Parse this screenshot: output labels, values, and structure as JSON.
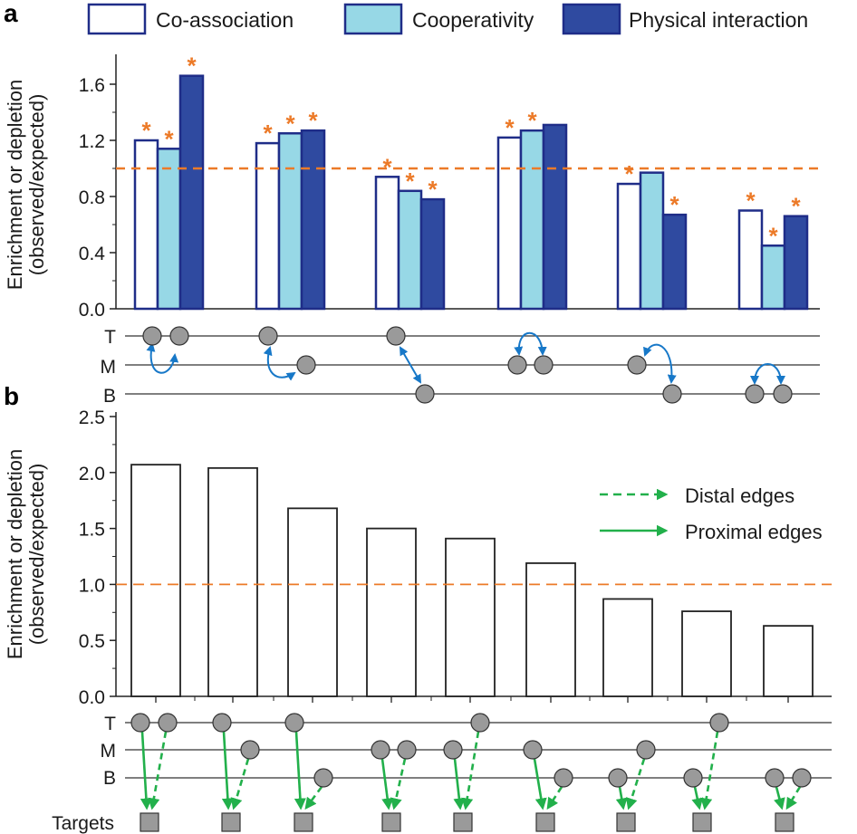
{
  "chart_data": [
    {
      "panel": "a",
      "type": "bar",
      "ylabel_line1": "Enrichment or depletion",
      "ylabel_line2": "(observed/expected)",
      "ylim": [
        0,
        1.7
      ],
      "yticks": [
        "0.0",
        "0.4",
        "0.8",
        "1.2",
        "1.6"
      ],
      "reference_line": 1.0,
      "legend": [
        "Co-association",
        "Cooperativity",
        "Physical interaction"
      ],
      "series": [
        {
          "name": "Co-association",
          "color": "#ffffff",
          "values": [
            1.2,
            1.18,
            0.94,
            1.22,
            0.89,
            0.7
          ],
          "significant": [
            true,
            true,
            true,
            true,
            true,
            true
          ]
        },
        {
          "name": "Cooperativity",
          "color": "#97d8e6",
          "values": [
            1.14,
            1.25,
            0.84,
            1.27,
            0.97,
            0.45
          ],
          "significant": [
            true,
            true,
            true,
            true,
            false,
            true
          ]
        },
        {
          "name": "Physical interaction",
          "color": "#2f4aa0",
          "values": [
            1.66,
            1.27,
            0.78,
            1.31,
            0.67,
            0.66
          ],
          "significant": [
            true,
            true,
            true,
            false,
            true,
            true
          ]
        }
      ],
      "significance_marker": "*",
      "level_labels": [
        "T",
        "M",
        "B"
      ]
    },
    {
      "panel": "b",
      "type": "bar",
      "ylabel_line1": "Enrichment or depletion",
      "ylabel_line2": "(observed/expected)",
      "ylim": [
        0,
        2.5
      ],
      "yticks": [
        "0.0",
        "0.5",
        "1.0",
        "1.5",
        "2.0",
        "2.5"
      ],
      "reference_line": 1.0,
      "values": [
        2.07,
        2.04,
        1.68,
        1.5,
        1.41,
        1.19,
        0.87,
        0.76,
        0.63
      ],
      "legend": [
        "Distal edges",
        "Proximal edges"
      ],
      "level_labels": [
        "T",
        "M",
        "B"
      ],
      "targets_label": "Targets"
    }
  ],
  "colors": {
    "orange": "#ec7a28",
    "navy": "#1f2d88",
    "cyan": "#97d8e6",
    "blue_arrow": "#1778c8",
    "green_arrow": "#22b04b",
    "node_gray": "#9a9a9a"
  }
}
